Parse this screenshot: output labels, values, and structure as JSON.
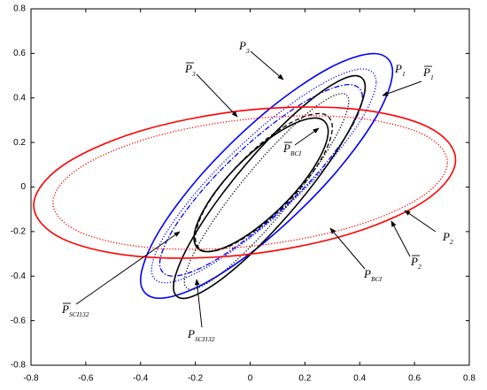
{
  "chart_data": {
    "type": "curves",
    "xlim": [
      -0.8,
      0.8
    ],
    "ylim": [
      -0.8,
      0.8
    ],
    "xticks": [
      -0.8,
      -0.6,
      -0.4,
      -0.2,
      0,
      0.2,
      0.4,
      0.6,
      0.8
    ],
    "yticks": [
      -0.8,
      -0.6,
      -0.4,
      -0.2,
      0,
      0.2,
      0.4,
      0.6,
      0.8
    ],
    "grid": false,
    "series": [
      {
        "color": "#0000ff",
        "style": "solid",
        "x": [
          0.52,
          0.458,
          0.29,
          0.06,
          -0.17,
          -0.338,
          -0.4,
          -0.338,
          -0.17,
          0.06,
          0.29,
          0.458
        ],
        "y": [
          0.518,
          0.599,
          0.535,
          0.34,
          0.067,
          -0.21,
          -0.418,
          -0.499,
          -0.435,
          -0.24,
          0.033,
          0.31
        ]
      },
      {
        "color": "#0000ff",
        "style": "dotted",
        "x": [
          0.46,
          0.405,
          0.255,
          0.05,
          -0.155,
          -0.305,
          -0.36,
          -0.305,
          -0.155,
          0.05,
          0.255,
          0.405
        ],
        "y": [
          0.472,
          0.53,
          0.458,
          0.278,
          0.036,
          -0.202,
          -0.372,
          -0.43,
          -0.358,
          -0.178,
          0.064,
          0.302
        ]
      },
      {
        "color": "#0000ff",
        "style": "dashdot",
        "x": [
          0.41,
          0.36,
          0.225,
          0.04,
          -0.145,
          -0.28,
          -0.33,
          -0.28,
          -0.145,
          0.04,
          0.225,
          0.36
        ],
        "y": [
          0.404,
          0.46,
          0.401,
          0.242,
          0.027,
          -0.188,
          -0.344,
          -0.4,
          -0.341,
          -0.182,
          0.033,
          0.248
        ]
      },
      {
        "color": "#000000",
        "style": "solid",
        "x": [
          0.42,
          0.373,
          0.245,
          0.07,
          -0.105,
          -0.233,
          -0.28,
          -0.233,
          -0.105,
          0.07,
          0.245,
          0.373
        ],
        "y": [
          0.45,
          0.499,
          0.414,
          0.218,
          -0.036,
          -0.281,
          -0.45,
          -0.499,
          -0.414,
          -0.218,
          0.036,
          0.281
        ]
      },
      {
        "color": "#000000",
        "style": "dotted",
        "x": [
          0.36,
          0.32,
          0.21,
          0.06,
          -0.09,
          -0.2,
          -0.24,
          -0.2,
          -0.09,
          0.06,
          0.21,
          0.32
        ],
        "y": [
          0.385,
          0.417,
          0.332,
          0.152,
          -0.073,
          -0.284,
          -0.425,
          -0.457,
          -0.372,
          -0.192,
          0.033,
          0.244
        ]
      },
      {
        "color": "#000000",
        "style": "dashed",
        "x": [
          0.3,
          0.267,
          0.175,
          0.05,
          -0.075,
          -0.167,
          -0.2,
          -0.167,
          -0.075,
          0.05,
          0.175,
          0.267
        ],
        "y": [
          0.268,
          0.328,
          0.305,
          0.206,
          0.057,
          -0.102,
          -0.228,
          -0.288,
          -0.265,
          -0.166,
          -0.017,
          0.142
        ]
      },
      {
        "color": "#000000",
        "style": "solid",
        "x": [
          0.285,
          0.252,
          0.163,
          0.04,
          -0.083,
          -0.172,
          -0.205,
          -0.172,
          -0.083,
          0.04,
          0.163,
          0.252
        ],
        "y": [
          0.25,
          0.308,
          0.286,
          0.19,
          0.046,
          -0.108,
          -0.23,
          -0.288,
          -0.266,
          -0.17,
          -0.026,
          0.128
        ]
      },
      {
        "color": "#ff0000",
        "style": "solid",
        "x": [
          0.75,
          0.647,
          0.365,
          -0.02,
          -0.405,
          -0.687,
          -0.79,
          -0.687,
          -0.405,
          -0.02,
          0.365,
          0.647
        ],
        "y": [
          0.122,
          0.271,
          0.352,
          0.344,
          0.25,
          0.094,
          -0.082,
          -0.231,
          -0.312,
          -0.304,
          -0.21,
          -0.054
        ]
      },
      {
        "color": "#ff0000",
        "style": "dotted",
        "x": [
          0.72,
          0.624,
          0.36,
          0,
          -0.36,
          -0.624,
          -0.72,
          -0.624,
          -0.36,
          0,
          0.36,
          0.624
        ],
        "y": [
          0.11,
          0.241,
          0.313,
          0.306,
          0.223,
          0.085,
          -0.07,
          -0.201,
          -0.273,
          -0.266,
          -0.183,
          -0.045
        ]
      }
    ],
    "annotations": [
      {
        "text": "P",
        "sub": "3",
        "overline": false
      },
      {
        "text": "P",
        "sub": "3",
        "overline": true
      },
      {
        "text": "P",
        "sub": "1",
        "overline": false
      },
      {
        "text": "P",
        "sub": "1",
        "overline": true
      },
      {
        "text": "P",
        "sub": "BCI",
        "overline": true
      },
      {
        "text": "P",
        "sub": "2",
        "overline": false
      },
      {
        "text": "P",
        "sub": "2",
        "overline": true
      },
      {
        "text": "P",
        "sub": "BCI",
        "overline": false
      },
      {
        "text": "P",
        "sub": "SCI132",
        "overline": true
      },
      {
        "text": "P",
        "sub": "SCI132",
        "overline": false
      }
    ]
  }
}
